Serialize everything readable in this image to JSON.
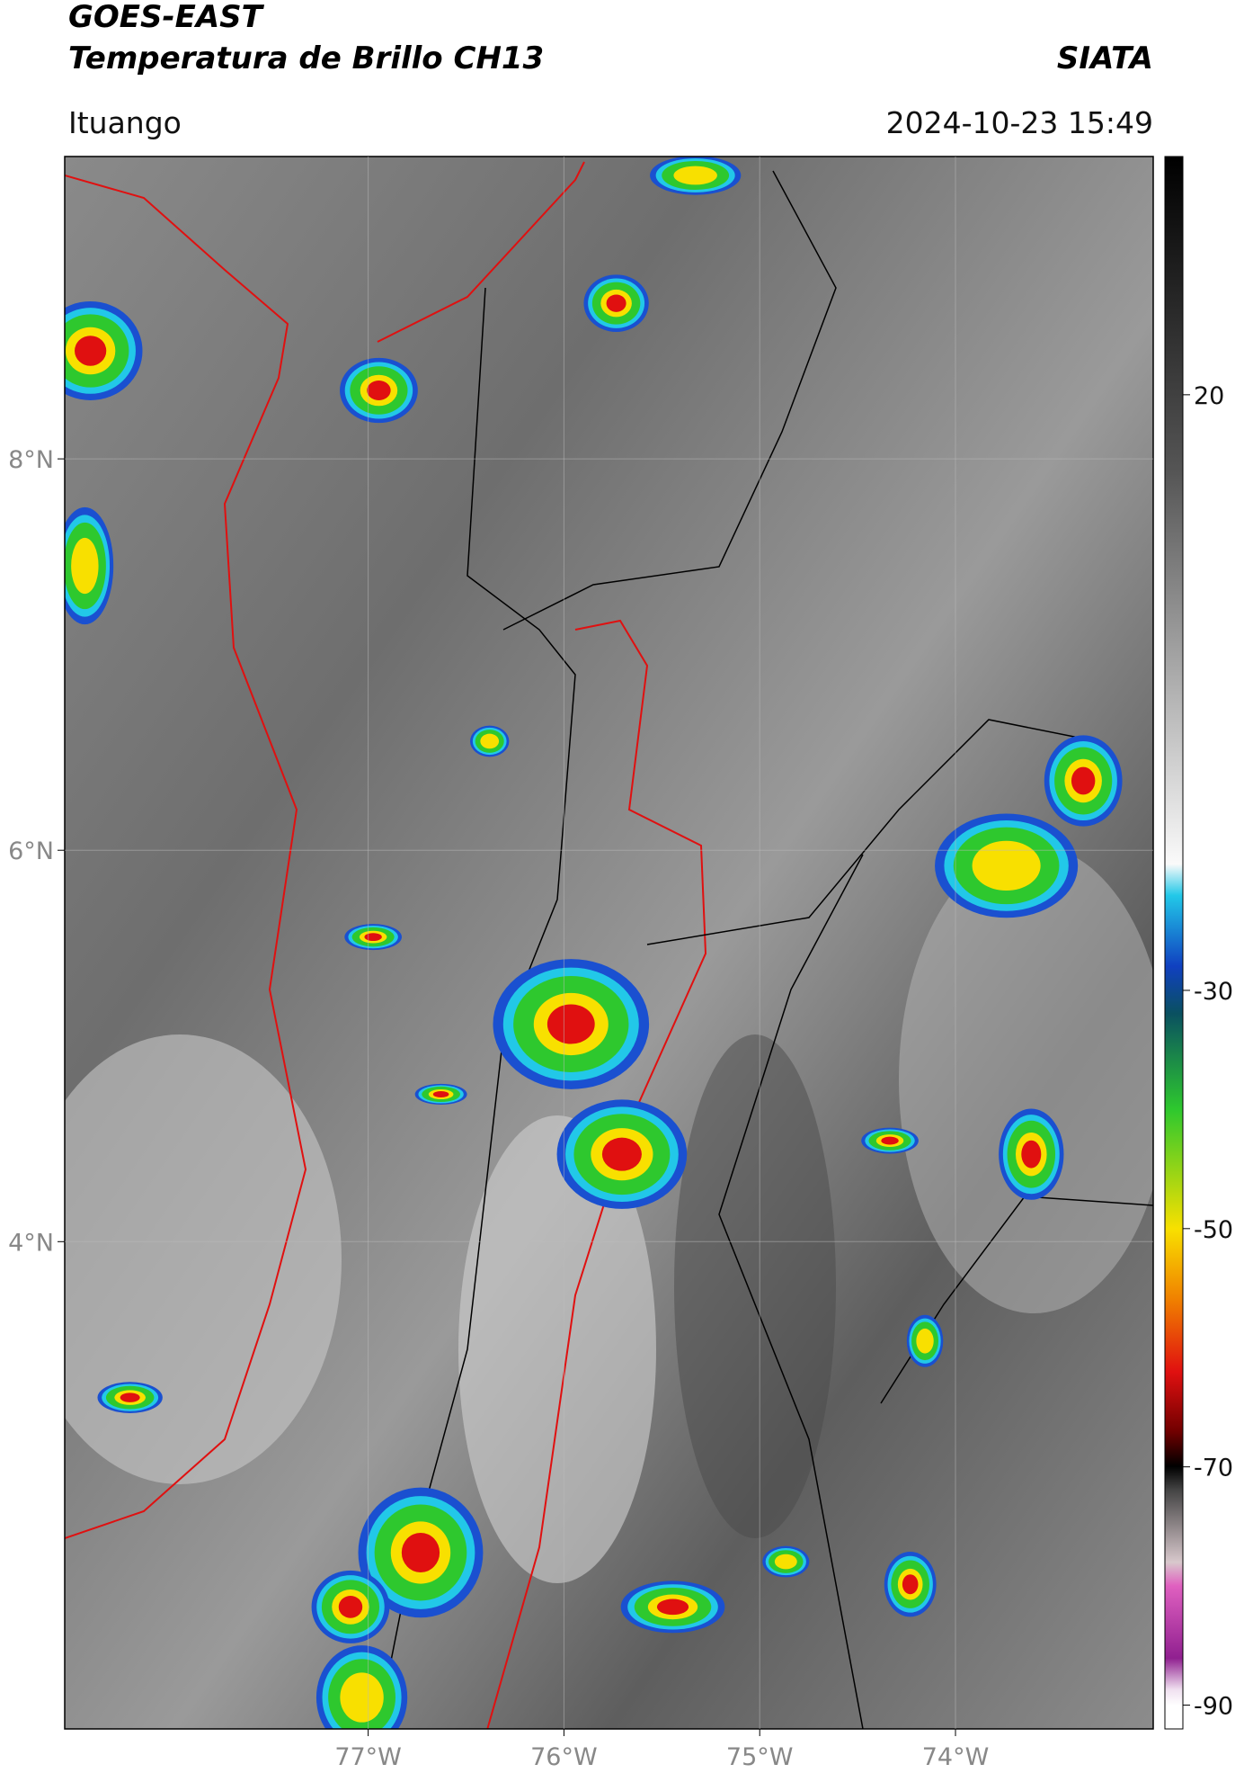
{
  "header": {
    "title": "GOES-EAST",
    "subtitle": "Temperatura de Brillo CH13",
    "source": "SIATA",
    "location": "Ituango",
    "datetime": "2024-10-23 15:49"
  },
  "map": {
    "xlim": [
      -78.55,
      -72.99
    ],
    "ylim": [
      1.51,
      9.545
    ],
    "xticks": [
      {
        "value": -77,
        "label": "77°W"
      },
      {
        "value": -76,
        "label": "76°W"
      },
      {
        "value": -75,
        "label": "75°W"
      },
      {
        "value": -74,
        "label": "74°W"
      }
    ],
    "yticks": [
      {
        "value": 4,
        "label": "4°N"
      },
      {
        "value": 6,
        "label": "6°N"
      },
      {
        "value": 8,
        "label": "8°N"
      }
    ],
    "grid": true
  },
  "colorbar": {
    "ylim": [
      -92,
      40
    ],
    "yticks": [
      -90,
      -70,
      -50,
      -30,
      20
    ]
  }
}
